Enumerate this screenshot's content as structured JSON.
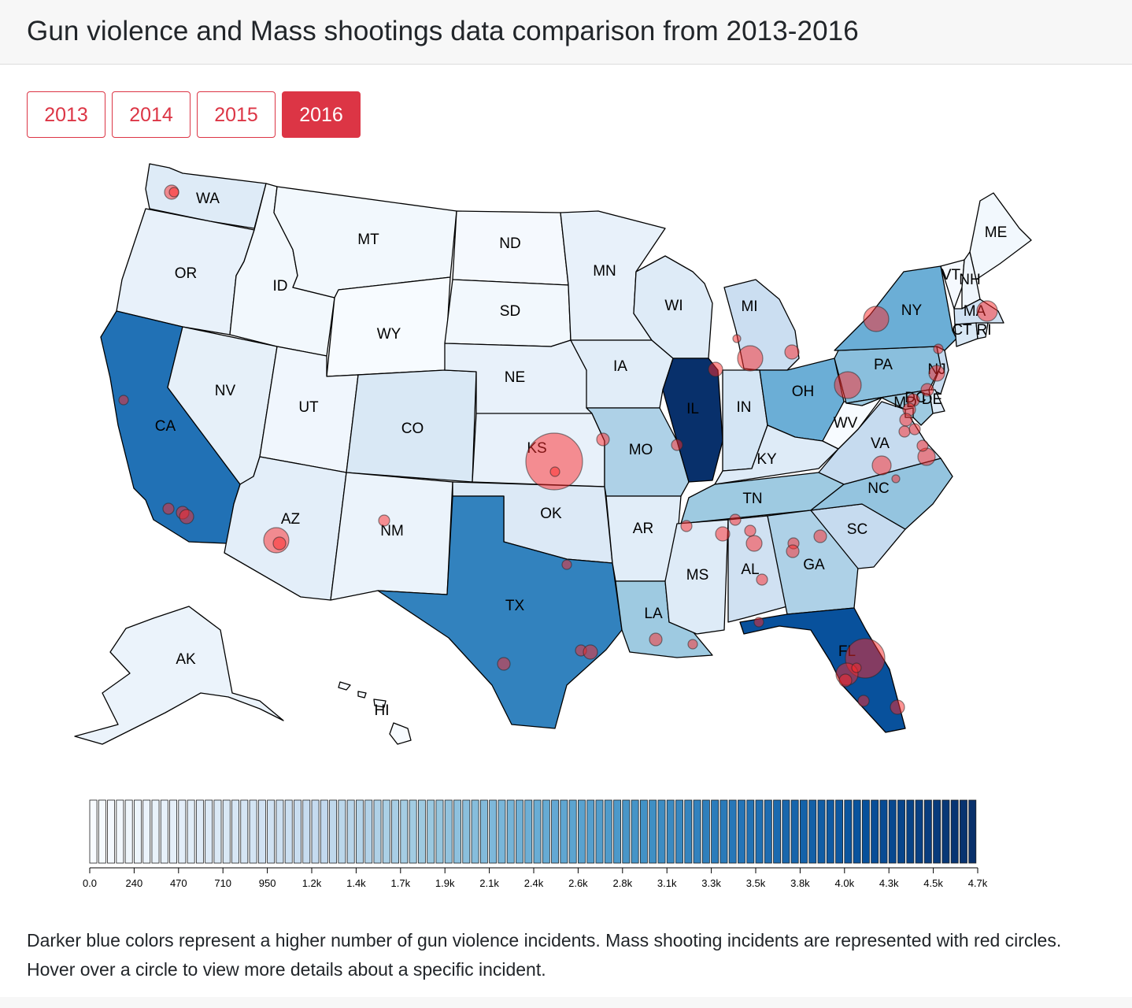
{
  "header": {
    "title": "Gun violence and Mass shootings data comparison from 2013-2016"
  },
  "year_buttons": [
    {
      "label": "2013",
      "active": false
    },
    {
      "label": "2014",
      "active": false
    },
    {
      "label": "2015",
      "active": false
    },
    {
      "label": "2016",
      "active": true
    }
  ],
  "colors": {
    "accent": "#dc3545",
    "ramp": [
      "#f7fbff",
      "#deebf7",
      "#c6dbef",
      "#9ecae1",
      "#6baed6",
      "#4292c6",
      "#2171b5",
      "#08519c",
      "#08306b"
    ],
    "circle_fill": "rgba(255,40,40,0.5)"
  },
  "map": {
    "states": [
      {
        "code": "WA",
        "level": 1
      },
      {
        "code": "OR",
        "level": 0.6
      },
      {
        "code": "CA",
        "level": 6
      },
      {
        "code": "NV",
        "level": 0.7
      },
      {
        "code": "ID",
        "level": 0.2
      },
      {
        "code": "MT",
        "level": 0.2
      },
      {
        "code": "WY",
        "level": 0
      },
      {
        "code": "UT",
        "level": 0.3
      },
      {
        "code": "AZ",
        "level": 0.8
      },
      {
        "code": "CO",
        "level": 1.2
      },
      {
        "code": "NM",
        "level": 0.5
      },
      {
        "code": "ND",
        "level": 0.1
      },
      {
        "code": "SD",
        "level": 0.2
      },
      {
        "code": "NE",
        "level": 0.6
      },
      {
        "code": "KS",
        "level": 0.6
      },
      {
        "code": "OK",
        "level": 1.1
      },
      {
        "code": "TX",
        "level": 5.5
      },
      {
        "code": "MN",
        "level": 0.6
      },
      {
        "code": "IA",
        "level": 0.9
      },
      {
        "code": "MO",
        "level": 2.6
      },
      {
        "code": "AR",
        "level": 0.9
      },
      {
        "code": "LA",
        "level": 3
      },
      {
        "code": "WI",
        "level": 1
      },
      {
        "code": "IL",
        "level": 8
      },
      {
        "code": "MI",
        "level": 1.8
      },
      {
        "code": "IN",
        "level": 1.4
      },
      {
        "code": "OH",
        "level": 4
      },
      {
        "code": "KY",
        "level": 1
      },
      {
        "code": "TN",
        "level": 3
      },
      {
        "code": "MS",
        "level": 1
      },
      {
        "code": "AL",
        "level": 1.6
      },
      {
        "code": "GA",
        "level": 2.6
      },
      {
        "code": "FL",
        "level": 7
      },
      {
        "code": "SC",
        "level": 2
      },
      {
        "code": "NC",
        "level": 3.2
      },
      {
        "code": "VA",
        "level": 2
      },
      {
        "code": "WV",
        "level": 0
      },
      {
        "code": "PA",
        "level": 3.4
      },
      {
        "code": "NY",
        "level": 4
      },
      {
        "code": "ME",
        "level": 0.2
      },
      {
        "code": "VT",
        "level": 0.1
      },
      {
        "code": "NH",
        "level": 0.3
      },
      {
        "code": "MA",
        "level": 1.6
      },
      {
        "code": "CT",
        "level": 1.2
      },
      {
        "code": "RI",
        "level": 0.8
      },
      {
        "code": "NJ",
        "level": 2
      },
      {
        "code": "DE",
        "level": 1
      },
      {
        "code": "MD",
        "level": 3
      },
      {
        "code": "DC",
        "level": 2
      },
      {
        "code": "AK",
        "level": 0.5
      },
      {
        "code": "HI",
        "level": 0
      }
    ],
    "labels": [
      "WA",
      "OR",
      "CA",
      "NV",
      "ID",
      "MT",
      "WY",
      "UT",
      "AZ",
      "CO",
      "NM",
      "ND",
      "SD",
      "NE",
      "KS",
      "OK",
      "TX",
      "MN",
      "IA",
      "MO",
      "AR",
      "LA",
      "WI",
      "IL",
      "MI",
      "IN",
      "OH",
      "KY",
      "TN",
      "MS",
      "AL",
      "GA",
      "FL",
      "SC",
      "NC",
      "VA",
      "WV",
      "PA",
      "NY",
      "ME",
      "VT",
      "NH",
      "MA",
      "CT",
      "RI",
      "NJ",
      "DE",
      "MD",
      "DC",
      "AK",
      "HI"
    ]
  },
  "legend": {
    "tick_labels": [
      "0.0",
      "240",
      "470",
      "710",
      "950",
      "1.2k",
      "1.4k",
      "1.7k",
      "1.9k",
      "2.1k",
      "2.4k",
      "2.6k",
      "2.8k",
      "3.1k",
      "3.3k",
      "3.5k",
      "3.8k",
      "4.0k",
      "4.3k",
      "4.5k",
      "4.7k"
    ],
    "min": 0,
    "max": 4700
  },
  "description": "Darker blue colors represent a higher number of gun violence incidents. Mass shooting incidents are represented with red circles. Hover over a circle to view more details about a specific incident."
}
